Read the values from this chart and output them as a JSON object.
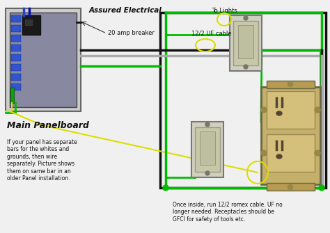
{
  "bg_color": "#e8e8e8",
  "header_text": "Assured Electrical",
  "label_20amp": "20 amp breaker",
  "label_cable": "12/2 UF cable",
  "label_to_lights": "To Lights",
  "label_main": "Main Panelboard",
  "label_panel_note": "If your panel has separate\nbars for the whites and\ngrounds, then wire\nseparately. Picture shows\nthem on same bar in an\nolder Panel installation.",
  "label_bottom_note": "Once inside, run 12/2 romex cable. UF no\nlonger needed. Receptacles should be\nGFCI for safety of tools etc.",
  "wire_green": "#00bb00",
  "wire_black": "#111111",
  "wire_white": "#aaaaaa",
  "wire_yellow": "#dddd00",
  "panel_outer": "#888888",
  "panel_inner": "#9090a0",
  "outlet_color": "#c8b878",
  "switch_color": "#d8d8c0"
}
